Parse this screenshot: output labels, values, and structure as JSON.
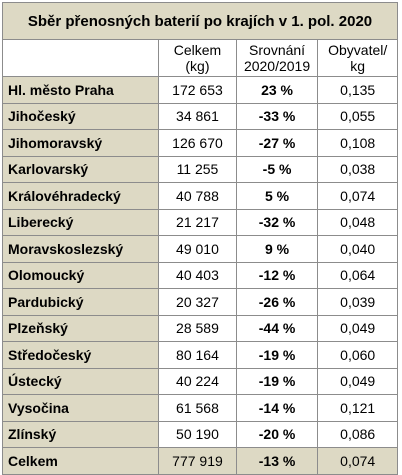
{
  "table": {
    "title": "Sběr přenosných baterií po krajích v 1. pol. 2020",
    "headers": {
      "region": "",
      "total_line1": "Celkem",
      "total_line2": "(kg)",
      "compare_line1": "Srovnání",
      "compare_line2": "2020/2019",
      "per_line1": "Obyvatel/",
      "per_line2": "kg"
    },
    "rows": [
      {
        "region": "Hl. město Praha",
        "total": "172 653",
        "compare": "23 %",
        "trend": "pos",
        "per_capita": "0,135"
      },
      {
        "region": "Jihočeský",
        "total": "34 861",
        "compare": "-33 %",
        "trend": "neg",
        "per_capita": "0,055"
      },
      {
        "region": "Jihomoravský",
        "total": "126 670",
        "compare": "-27 %",
        "trend": "neu",
        "per_capita": "0,108"
      },
      {
        "region": "Karlovarský",
        "total": "11 255",
        "compare": "-5 %",
        "trend": "neu",
        "per_capita": "0,038"
      },
      {
        "region": "Královéhradecký",
        "total": "40 788",
        "compare": "5 %",
        "trend": "pos",
        "per_capita": "0,074"
      },
      {
        "region": "Liberecký",
        "total": "21 217",
        "compare": "-32 %",
        "trend": "neg",
        "per_capita": "0,048"
      },
      {
        "region": "Moravskoslezský",
        "total": "49 010",
        "compare": "9 %",
        "trend": "pos",
        "per_capita": "0,040"
      },
      {
        "region": "Olomoucký",
        "total": "40 403",
        "compare": "-12 %",
        "trend": "neu",
        "per_capita": "0,064"
      },
      {
        "region": "Pardubický",
        "total": "20 327",
        "compare": "-26 %",
        "trend": "neu",
        "per_capita": "0,039"
      },
      {
        "region": "Plzeňský",
        "total": "28 589",
        "compare": "-44 %",
        "trend": "neg",
        "per_capita": "0,049"
      },
      {
        "region": "Středočeský",
        "total": "80 164",
        "compare": "-19 %",
        "trend": "neu",
        "per_capita": "0,060"
      },
      {
        "region": "Ústecký",
        "total": "40 224",
        "compare": "-19 %",
        "trend": "neu",
        "per_capita": "0,049"
      },
      {
        "region": "Vysočina",
        "total": "61 568",
        "compare": "-14 %",
        "trend": "neu",
        "per_capita": "0,121"
      },
      {
        "region": "Zlínský",
        "total": "50 190",
        "compare": "-20 %",
        "trend": "neu",
        "per_capita": "0,086"
      }
    ],
    "summary": {
      "region": "Celkem",
      "total": "777 919",
      "compare": "-13 %",
      "trend": "neu",
      "per_capita": "0,074"
    },
    "colors": {
      "header_bg": "#ddd9c4",
      "positive": "#2ea84a",
      "negative": "#e8262b",
      "border": "#8c8c8c"
    }
  }
}
